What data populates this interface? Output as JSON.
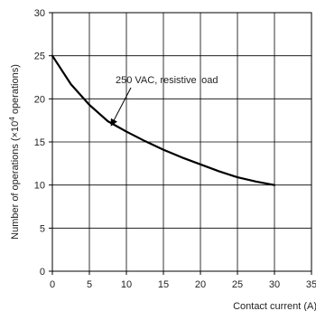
{
  "chart_data": {
    "type": "line",
    "title": "",
    "xlabel": "Contact current (A)",
    "ylabel_main": "Number of operations (×10",
    "ylabel_exp": "4",
    "ylabel_tail": " operations)",
    "xlim": [
      0,
      35
    ],
    "ylim": [
      0,
      30
    ],
    "xticks": [
      "0",
      "5",
      "10",
      "15",
      "20",
      "25",
      "30",
      "35"
    ],
    "yticks": [
      "0",
      "5",
      "10",
      "15",
      "20",
      "25",
      "30"
    ],
    "grid": true,
    "series": [
      {
        "x": [
          0,
          2.5,
          5,
          7.5,
          10,
          12.5,
          15,
          17.5,
          20,
          22.5,
          25,
          27.5,
          30
        ],
        "y": [
          25,
          21.7,
          19.3,
          17.4,
          16.2,
          15.1,
          14.1,
          13.2,
          12.4,
          11.6,
          10.9,
          10.4,
          10.0
        ]
      }
    ],
    "annotations": [
      {
        "text": "250 VAC, resistive load",
        "arrow_to": [
          8.0,
          17.0
        ]
      }
    ],
    "line_color": "#000000",
    "grid_color": "#000000"
  }
}
